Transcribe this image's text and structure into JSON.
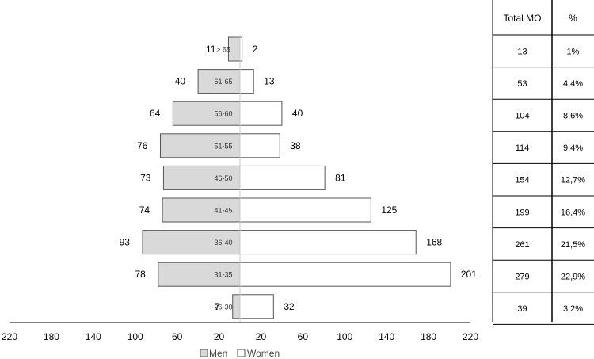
{
  "chart_data": {
    "type": "bar",
    "subtype": "population-pyramid",
    "categories": [
      "> 65",
      "61-65",
      "56-60",
      "51-55",
      "46-50",
      "41-45",
      "36-40",
      "31-35",
      "26-30"
    ],
    "series": [
      {
        "name": "Men",
        "values": [
          11,
          40,
          64,
          76,
          73,
          74,
          93,
          78,
          7
        ],
        "color": "#d9d9d9"
      },
      {
        "name": "Women",
        "values": [
          2,
          13,
          40,
          38,
          81,
          125,
          168,
          201,
          32
        ],
        "color": "#ffffff"
      }
    ],
    "xlim": [
      -220,
      220
    ],
    "x_tick_labels": [
      "220",
      "180",
      "140",
      "100",
      "60",
      "20",
      "20",
      "60",
      "100",
      "140",
      "180",
      "220"
    ],
    "legend": {
      "position": "bottom",
      "items": [
        "Men",
        "Women"
      ]
    },
    "table": {
      "headers": [
        "Total MO",
        "%"
      ],
      "rows": [
        [
          "13",
          "1%"
        ],
        [
          "53",
          "4,4%"
        ],
        [
          "104",
          "8,6%"
        ],
        [
          "114",
          "9,4%"
        ],
        [
          "154",
          "12,7%"
        ],
        [
          "199",
          "16,4%"
        ],
        [
          "261",
          "21,5%"
        ],
        [
          "279",
          "22,9%"
        ],
        [
          "39",
          "3,2%"
        ]
      ]
    }
  }
}
